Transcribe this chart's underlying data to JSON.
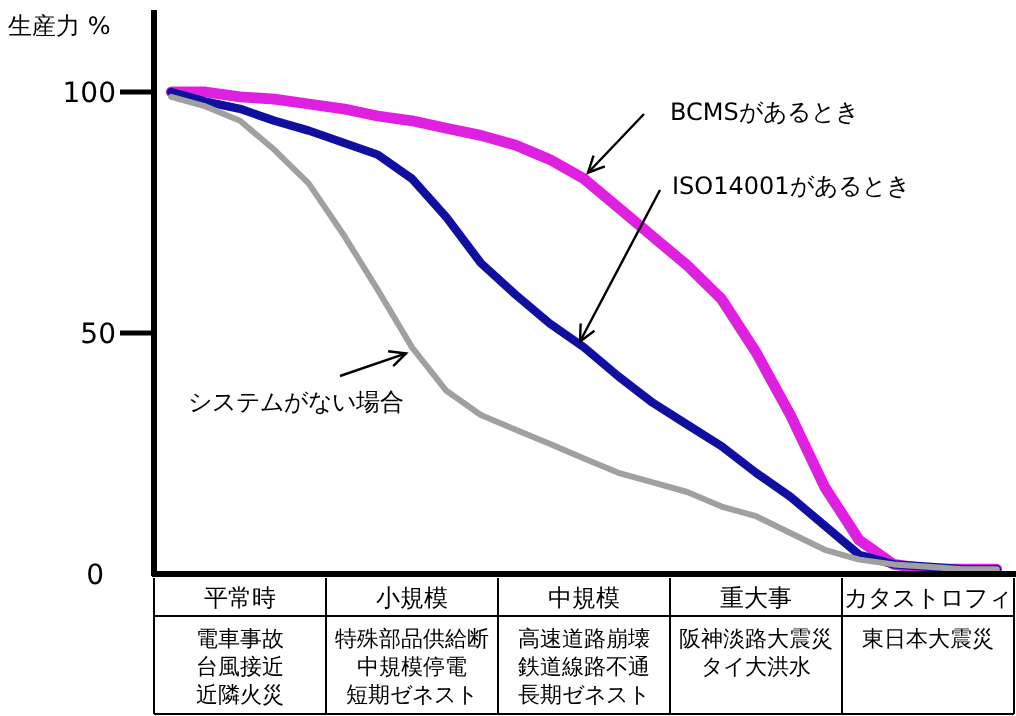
{
  "chart_data": {
    "type": "line",
    "ylabel": "生産力 %",
    "categories": [
      null,
      null,
      "平常時",
      null,
      null,
      null,
      null,
      "小規模",
      null,
      null,
      null,
      null,
      "中規模",
      null,
      null,
      null,
      null,
      "重大事",
      null,
      null,
      null,
      null,
      "カタストロフィ",
      null,
      null
    ],
    "ylim": [
      0,
      117
    ],
    "yticks": [
      0,
      50,
      100
    ],
    "grid": false,
    "marker": "none",
    "line_style": "solid",
    "series": [
      {
        "color": "#e020e0",
        "values": [
          100,
          100,
          99,
          98.5,
          97.5,
          96.5,
          95,
          94,
          92.5,
          91,
          89,
          86,
          82,
          76,
          70,
          64,
          57,
          46,
          33,
          18,
          7,
          2,
          1,
          1,
          1
        ]
      },
      {
        "color": "#1010a0",
        "values": [
          100,
          98,
          96.5,
          94,
          92,
          89.5,
          87,
          82,
          74,
          64.5,
          58,
          52,
          47,
          41,
          35.5,
          31,
          26.5,
          21,
          16,
          10,
          4,
          2,
          1.5,
          1,
          1
        ]
      },
      {
        "color": "#a0a0a0",
        "values": [
          99,
          97,
          94,
          88,
          81,
          70.5,
          59,
          47,
          38,
          33,
          30,
          27,
          24,
          21,
          19,
          17,
          14,
          12,
          8.5,
          5,
          3,
          2,
          1.5,
          1,
          1
        ]
      }
    ],
    "annotations": [
      {
        "text": "BCMSがあるとき",
        "x": "中規模",
        "y": 82
      },
      {
        "text": "ISO14001があるとき",
        "x": "中規模",
        "y": 47
      },
      {
        "text": "システムがない場合",
        "x": "小規模",
        "y": 47
      },
      "電車事故",
      "台風接近",
      "近隣火災",
      "特殊部品供給断",
      "中規模停電",
      "短期ゼネスト",
      "高速道路崩壊",
      "鉄道線路不通",
      "長期ゼネスト",
      "阪神淡路大震災",
      "タイ大洪水",
      "東日本大震災"
    ]
  }
}
